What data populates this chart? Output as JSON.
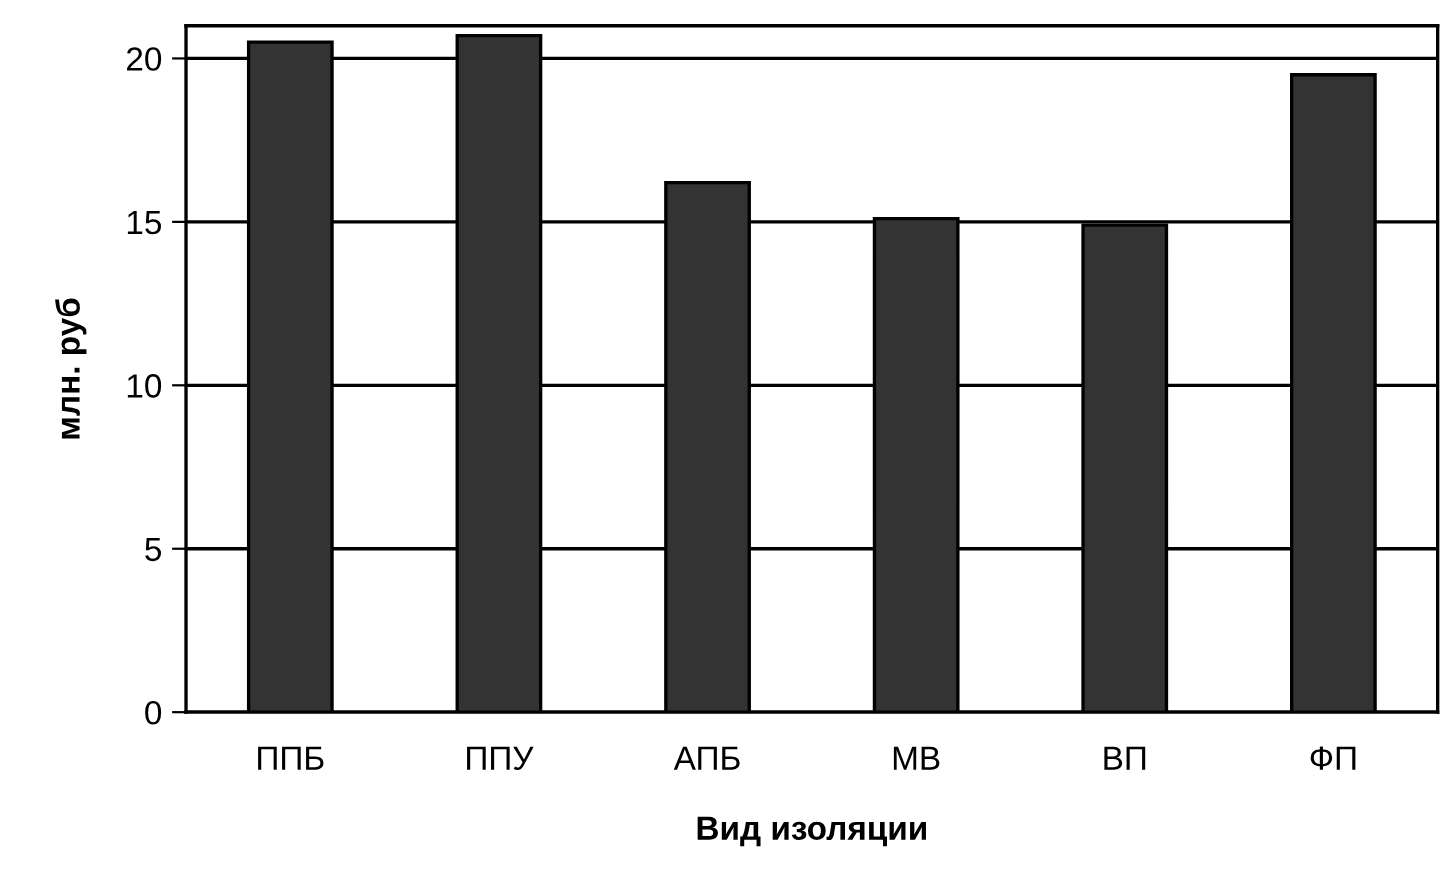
{
  "chart_data": {
    "type": "bar",
    "xlabel": "Вид изоляции",
    "ylabel": "млн. руб",
    "categories": [
      "ППБ",
      "ППУ",
      "АПБ",
      "МВ",
      "ВП",
      "ФП"
    ],
    "values": [
      20.5,
      20.7,
      16.2,
      15.1,
      14.9,
      19.5
    ],
    "color": "#333333",
    "ylim": [
      0,
      21
    ],
    "yticks": [
      0,
      5,
      10,
      15,
      20
    ],
    "grid": "y",
    "legend": false
  }
}
